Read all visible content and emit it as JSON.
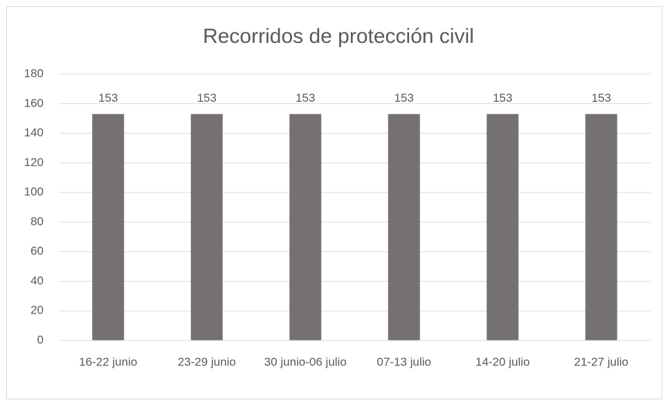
{
  "chart_data": {
    "type": "bar",
    "title": "Recorridos de protección civil",
    "categories": [
      "16-22 junio",
      "23-29 junio",
      "30 junio-06 julio",
      "07-13 julio",
      "14-20 julio",
      "21-27 julio"
    ],
    "values": [
      153,
      153,
      153,
      153,
      153,
      153
    ],
    "color": "#757170",
    "ylim": [
      0,
      180
    ],
    "yticks": [
      0,
      20,
      40,
      60,
      80,
      100,
      120,
      140,
      160,
      180
    ],
    "grid": true,
    "data_labels": true
  }
}
